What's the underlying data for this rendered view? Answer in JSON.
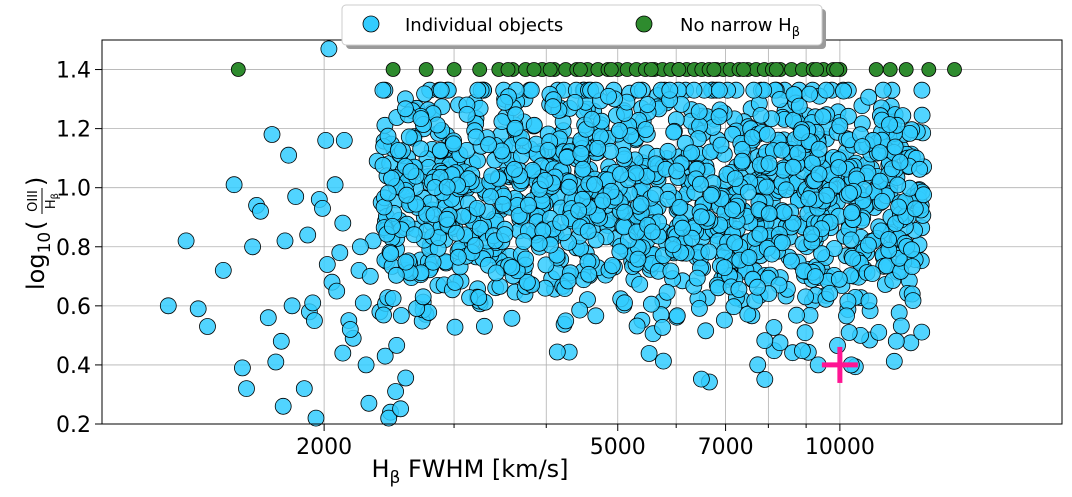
{
  "chart_data": {
    "type": "scatter",
    "title": "",
    "xlabel": "H_β FWHM [km/s]",
    "xlabel_main": "H",
    "xlabel_sub": "β",
    "xlabel_rest": " FWHM [km/s]",
    "ylabel": "log10(OIII/Hβ)",
    "ylabel_prefix": "log",
    "ylabel_sub": "10",
    "ylabel_num": "OIII",
    "ylabel_den_main": "H",
    "ylabel_den_sub": "β",
    "x_scale": "log",
    "xlim": [
      1000,
      20000
    ],
    "ylim": [
      0.2,
      1.5
    ],
    "x_ticks_major": [
      2000,
      5000,
      7000,
      10000
    ],
    "x_ticks_minor": [
      3000,
      4000,
      6000,
      8000,
      9000
    ],
    "y_ticks": [
      0.2,
      0.4,
      0.6,
      0.8,
      1.0,
      1.2,
      1.4
    ],
    "x_tick_labels": [
      "2000",
      "5000",
      "7000",
      "10000"
    ],
    "y_tick_labels": [
      "0.2",
      "0.4",
      "0.6",
      "0.8",
      "1.0",
      "1.2",
      "1.4"
    ],
    "grid": true,
    "legend_placement": "top-center outside",
    "legend": [
      {
        "label": "Individual objects",
        "marker": "circle",
        "color": "#33ccff"
      },
      {
        "label_main": "No narrow H",
        "label_sub": "β",
        "label": "No narrow Hβ",
        "marker": "circle",
        "color": "#2e8b2e"
      }
    ],
    "series": [
      {
        "name": "Individual objects",
        "color": "#33ccff",
        "points": [
          [
            2030,
            1.47
          ],
          [
            1230,
            0.6
          ],
          [
            1300,
            0.82
          ],
          [
            1350,
            0.59
          ],
          [
            1390,
            0.53
          ],
          [
            1460,
            0.72
          ],
          [
            1510,
            1.01
          ],
          [
            1550,
            0.39
          ],
          [
            1570,
            0.32
          ],
          [
            1620,
            0.94
          ],
          [
            1640,
            0.92
          ],
          [
            1700,
            1.18
          ],
          [
            1720,
            0.41
          ],
          [
            1760,
            0.26
          ],
          [
            1770,
            0.82
          ],
          [
            1790,
            1.11
          ],
          [
            1830,
            0.97
          ],
          [
            1880,
            0.32
          ],
          [
            1910,
            0.58
          ],
          [
            1930,
            0.61
          ],
          [
            1950,
            0.22
          ],
          [
            1970,
            0.96
          ],
          [
            1990,
            0.93
          ],
          [
            2010,
            1.16
          ],
          [
            2050,
            0.68
          ],
          [
            2070,
            1.01
          ],
          [
            2100,
            0.78
          ],
          [
            2130,
            1.16
          ],
          [
            2160,
            0.55
          ],
          [
            2190,
            0.49
          ],
          [
            2230,
            0.72
          ],
          [
            2260,
            0.61
          ],
          [
            2280,
            0.4
          ],
          [
            2300,
            0.27
          ],
          [
            2330,
            0.82
          ],
          [
            2360,
            1.09
          ],
          [
            2390,
            0.95
          ],
          [
            2420,
            0.43
          ],
          [
            2460,
            0.24
          ],
          [
            2500,
            0.31
          ],
          [
            1810,
            0.6
          ],
          [
            1900,
            0.84
          ],
          [
            1940,
            0.55
          ],
          [
            2020,
            0.74
          ],
          [
            2080,
            0.65
          ],
          [
            2120,
            0.88
          ],
          [
            2170,
            0.52
          ],
          [
            2240,
            0.8
          ],
          [
            2310,
            0.7
          ],
          [
            2380,
            0.58
          ],
          [
            1600,
            0.8
          ],
          [
            1680,
            0.56
          ],
          [
            1750,
            0.48
          ],
          [
            2120,
            0.44
          ]
        ],
        "cloud": {
          "x_range": [
            2400,
            13000
          ],
          "y_center": 0.95,
          "y_spread": 0.21,
          "count": 1450
        }
      },
      {
        "name": "No narrow Hβ",
        "color": "#2e8b2e",
        "y": 1.4,
        "x": [
          1530,
          2480,
          2750,
          3000,
          3250,
          3450,
          3600,
          3750,
          3950,
          4100,
          4250,
          4400,
          4550,
          4700,
          4850,
          5000,
          5150,
          5300,
          5450,
          5600,
          5750,
          5900,
          6050,
          6200,
          6350,
          6500,
          6650,
          6800,
          6950,
          7100,
          7300,
          7500,
          7700,
          7900,
          8100,
          8300,
          8600,
          8900,
          9200,
          9500,
          9800,
          10000,
          11200,
          11700,
          12300,
          13200,
          14300,
          3550,
          3850,
          4050,
          4450,
          4900,
          5550,
          6050,
          6750,
          7400,
          8200,
          9300,
          9900
        ]
      }
    ],
    "annotations": [
      {
        "type": "plus-marker",
        "x": 10000,
        "y": 0.4,
        "color": "#ff1493"
      }
    ]
  }
}
